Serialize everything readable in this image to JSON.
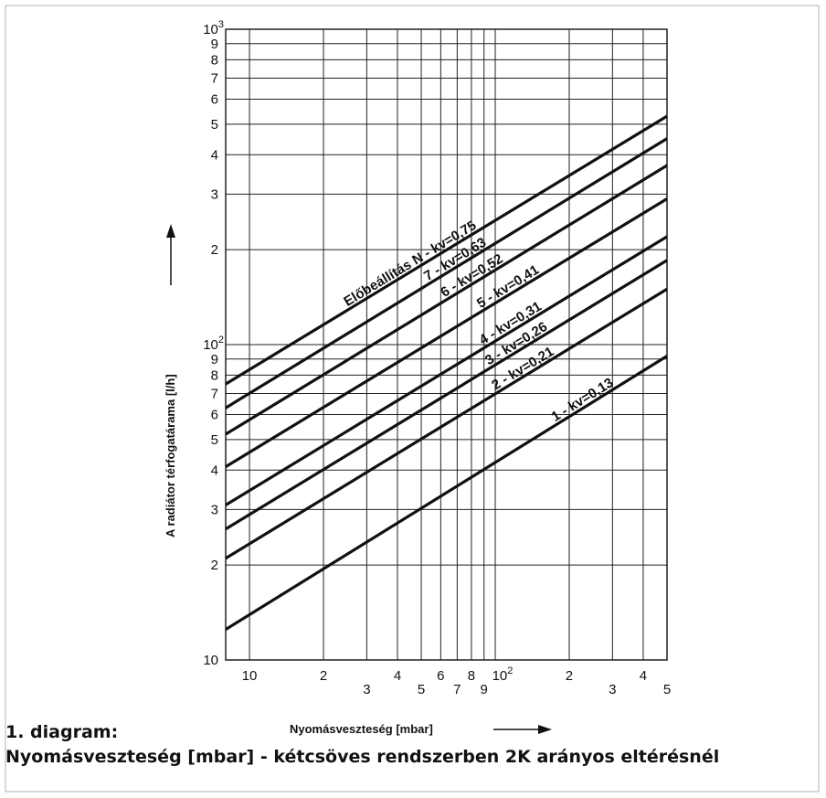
{
  "chart_data": {
    "type": "line",
    "xscale": "log",
    "yscale": "log",
    "xlim": [
      8,
      500
    ],
    "ylim": [
      10,
      1000
    ],
    "grid": true,
    "xlabel": "Nyomásveszteség [mbar]",
    "ylabel": "A radiátor térfogatárama [l/h]",
    "x_ticks": [
      {
        "v": 10,
        "t": "10",
        "row": "up"
      },
      {
        "v": 20,
        "t": "2",
        "row": "up"
      },
      {
        "v": 30,
        "t": "3",
        "row": "down"
      },
      {
        "v": 40,
        "t": "4",
        "row": "up"
      },
      {
        "v": 50,
        "t": "5",
        "row": "down"
      },
      {
        "v": 60,
        "t": "6",
        "row": "up"
      },
      {
        "v": 70,
        "t": "7",
        "row": "down"
      },
      {
        "v": 80,
        "t": "8",
        "row": "up"
      },
      {
        "v": 90,
        "t": "9",
        "row": "down"
      },
      {
        "v": 100,
        "t": "10",
        "sup": "2",
        "row": "up"
      },
      {
        "v": 200,
        "t": "2",
        "row": "up"
      },
      {
        "v": 300,
        "t": "3",
        "row": "down"
      },
      {
        "v": 400,
        "t": "4",
        "row": "up"
      },
      {
        "v": 500,
        "t": "5",
        "row": "down"
      }
    ],
    "y_ticks": [
      {
        "v": 10,
        "t": "10"
      },
      {
        "v": 20,
        "t": "2"
      },
      {
        "v": 30,
        "t": "3"
      },
      {
        "v": 40,
        "t": "4"
      },
      {
        "v": 50,
        "t": "5"
      },
      {
        "v": 60,
        "t": "6"
      },
      {
        "v": 70,
        "t": "7"
      },
      {
        "v": 80,
        "t": "8"
      },
      {
        "v": 90,
        "t": "9"
      },
      {
        "v": 100,
        "t": "10",
        "sup": "2"
      },
      {
        "v": 200,
        "t": "2"
      },
      {
        "v": 300,
        "t": "3"
      },
      {
        "v": 400,
        "t": "4"
      },
      {
        "v": 500,
        "t": "5"
      },
      {
        "v": 600,
        "t": "6"
      },
      {
        "v": 700,
        "t": "7"
      },
      {
        "v": 800,
        "t": "8"
      },
      {
        "v": 900,
        "t": "9"
      },
      {
        "v": 1000,
        "t": "10",
        "sup": "3"
      }
    ],
    "series": [
      {
        "name": "Előbeállítás N - kv=0,75",
        "x": [
          8,
          500
        ],
        "y": [
          75,
          530
        ],
        "label_at_x": 25
      },
      {
        "name": "7 - kv=0,63",
        "x": [
          8,
          500
        ],
        "y": [
          63,
          450
        ],
        "label_at_x": 53
      },
      {
        "name": "6 - kv=0,52",
        "x": [
          8,
          500
        ],
        "y": [
          52,
          370
        ],
        "label_at_x": 62
      },
      {
        "name": "5 - kv=0,41",
        "x": [
          8,
          500
        ],
        "y": [
          41,
          290
        ],
        "label_at_x": 87
      },
      {
        "name": "4 - kv=0,31",
        "x": [
          8,
          500
        ],
        "y": [
          31,
          220
        ],
        "label_at_x": 89
      },
      {
        "name": "3 - kv=0,26",
        "x": [
          8,
          500
        ],
        "y": [
          26,
          185
        ],
        "label_at_x": 94
      },
      {
        "name": "2 - kv=0,21",
        "x": [
          8,
          500
        ],
        "y": [
          21,
          150
        ],
        "label_at_x": 100
      },
      {
        "name": "1 - kv=0,13",
        "x": [
          8,
          500
        ],
        "y": [
          12.5,
          92
        ],
        "label_at_x": 175
      }
    ]
  },
  "caption": {
    "line1": "1. diagram:",
    "line2": "Nyomásveszteség [mbar] - kétcsöves rendszerben 2K arányos eltérésnél"
  }
}
